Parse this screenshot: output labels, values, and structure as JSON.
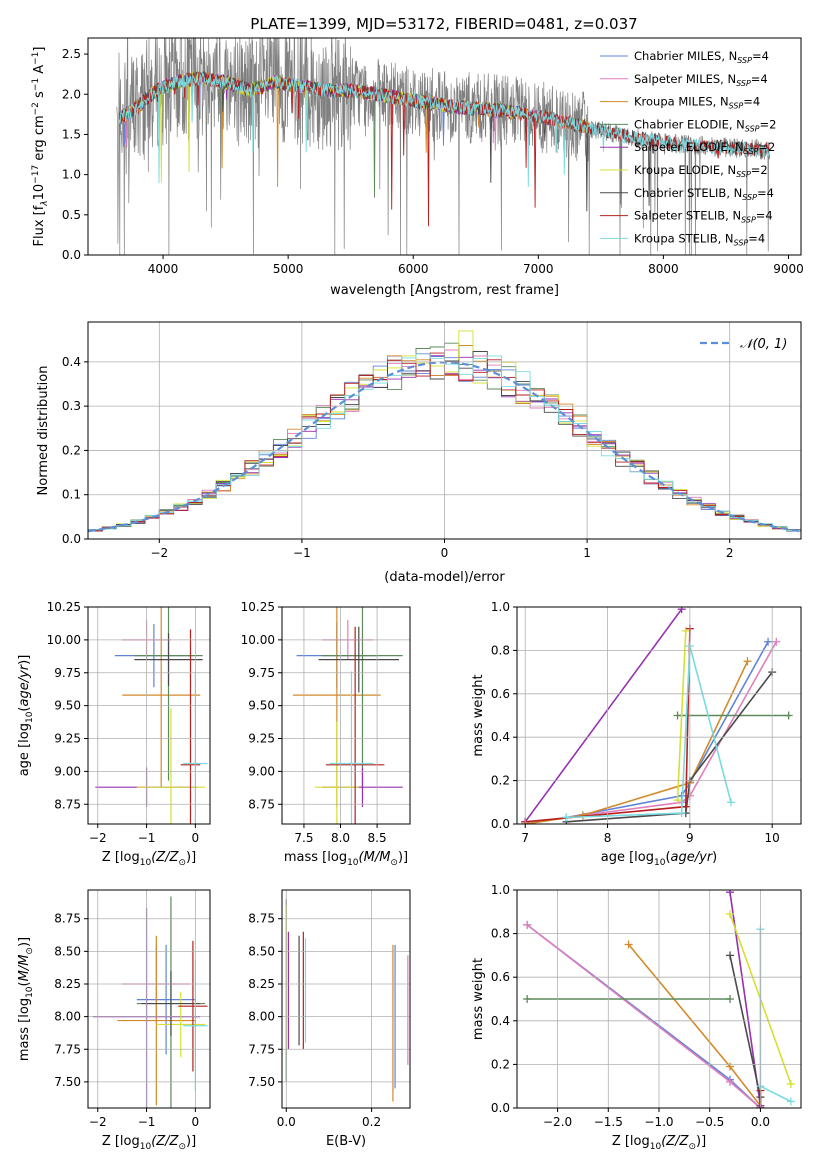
{
  "colors": {
    "Chabrier MILES": "#5f84d8",
    "Salpeter MILES": "#e07fbd",
    "Kroupa MILES": "#d28a2a",
    "Chabrier ELODIE": "#5c8a5a",
    "Salpeter ELODIE": "#9531b0",
    "Kroupa ELODIE": "#d6e030",
    "Chabrier STELIB": "#4a4a4a",
    "Salpeter STELIB": "#b81f1f",
    "Kroupa STELIB": "#79dbe0",
    "data": "#808080",
    "normal": "#5b8fd8",
    "orange": "#e07b2a",
    "purple": "#9531b0",
    "green": "#5c8a5a"
  },
  "chart_data": [
    {
      "type": "line",
      "title": "PLATE=1399, MJD=53172, FIBERID=0481, z=0.037",
      "xlabel": "wavelength [Angstrom, rest frame]",
      "ylabel": "Flux [f",
      "xlim": [
        3400,
        9100
      ],
      "ylim": [
        0,
        2.7
      ],
      "xticks": [
        "4000",
        "5000",
        "6000",
        "7000",
        "8000",
        "9000"
      ],
      "yticks": [
        "0.0",
        "0.5",
        "1.0",
        "1.5",
        "2.0",
        "2.5"
      ],
      "legend": "top-right",
      "legend_entries": [
        {
          "name": "Chabrier MILES, N",
          "sub": "SSP",
          "tail": "=4"
        },
        {
          "name": "Salpeter MILES, N",
          "sub": "SSP",
          "tail": "=4"
        },
        {
          "name": "Kroupa MILES, N",
          "sub": "SSP",
          "tail": "=4"
        },
        {
          "name": "Chabrier ELODIE, N",
          "sub": "SSP",
          "tail": "=2"
        },
        {
          "name": "Salpeter ELODIE, N",
          "sub": "SSP",
          "tail": "=2"
        },
        {
          "name": "Kroupa ELODIE, N",
          "sub": "SSP",
          "tail": "=2"
        },
        {
          "name": "Chabrier STELIB, N",
          "sub": "SSP",
          "tail": "=4"
        },
        {
          "name": "Salpeter STELIB, N",
          "sub": "SSP",
          "tail": "=4"
        },
        {
          "name": "Kroupa STELIB, N",
          "sub": "SSP",
          "tail": "=4"
        }
      ],
      "continuum": [
        [
          3650,
          1.7
        ],
        [
          3800,
          1.85
        ],
        [
          3950,
          2.05
        ],
        [
          4100,
          2.15
        ],
        [
          4300,
          2.2
        ],
        [
          4500,
          2.15
        ],
        [
          4700,
          2.05
        ],
        [
          4900,
          2.15
        ],
        [
          5100,
          2.1
        ],
        [
          5300,
          2.05
        ],
        [
          5500,
          2.05
        ],
        [
          5700,
          2.0
        ],
        [
          5900,
          1.95
        ],
        [
          6100,
          1.9
        ],
        [
          6300,
          1.85
        ],
        [
          6500,
          1.82
        ],
        [
          6700,
          1.8
        ],
        [
          6900,
          1.75
        ],
        [
          7100,
          1.7
        ],
        [
          7300,
          1.62
        ],
        [
          7500,
          1.55
        ],
        [
          7700,
          1.48
        ],
        [
          7900,
          1.42
        ],
        [
          8100,
          1.38
        ],
        [
          8300,
          1.36
        ],
        [
          8500,
          1.34
        ],
        [
          8700,
          1.32
        ],
        [
          8850,
          1.3
        ]
      ],
      "ssp_wavelength_limits": {
        "MILES": [
          3650,
          7400
        ],
        "ELODIE": [
          3650,
          6800
        ],
        "STELIB": [
          3650,
          8850
        ]
      }
    },
    {
      "type": "step",
      "xlabel": "(data-model)/error",
      "ylabel": "Normed distribution",
      "xlim": [
        -2.5,
        2.5
      ],
      "ylim": [
        0,
        0.49
      ],
      "xticks": [
        "−2",
        "−1",
        "0",
        "1",
        "2"
      ],
      "yticks": [
        "0.0",
        "0.1",
        "0.2",
        "0.3",
        "0.4"
      ],
      "legend": "top-right",
      "legend_entry": "𝒩(0, 1)",
      "bin_width": 0.1,
      "curve": "normal",
      "mean": 0,
      "sigma": 1
    },
    {
      "type": "errorbar",
      "xlabel_main": "Z [log",
      "xlabel_sub": "10",
      "xlabel_rest": "(Z/Z",
      "ylabel": "age  [log10(age/yr)]",
      "xlim": [
        -2.2,
        0.3
      ],
      "ylim": [
        8.6,
        10.25
      ],
      "xticks": [
        {
          "v": -2,
          "t": "−2"
        },
        {
          "v": -1,
          "t": "−1"
        },
        {
          "v": 0,
          "t": "0"
        }
      ],
      "yticks": [
        "8.75",
        "9.00",
        "9.25",
        "9.50",
        "9.75",
        "10.00",
        "10.25"
      ],
      "series": [
        {
          "name": "Chabrier MILES",
          "x": -0.85,
          "xerr": 0.8,
          "y": 9.88,
          "yerr": 0.24
        },
        {
          "name": "Salpeter MILES",
          "x": -1.0,
          "xerr": 0.5,
          "y": 10.0,
          "yerr": 0.15
        },
        {
          "name": "Kroupa MILES",
          "x": -0.7,
          "xerr": 0.8,
          "y": 9.58,
          "yerr": 0.7
        },
        {
          "name": "Chabrier ELODIE",
          "x": -0.55,
          "xerr": 0.7,
          "y": 9.88,
          "yerr": 0.95
        },
        {
          "name": "Salpeter ELODIE",
          "x": -1.0,
          "xerr": 1.05,
          "y": 8.88,
          "yerr": 0.15
        },
        {
          "name": "Kroupa ELODIE",
          "x": -0.5,
          "xerr": 0.7,
          "y": 8.88,
          "yerr": 0.6
        },
        {
          "name": "Chabrier STELIB",
          "x": -0.55,
          "xerr": 0.7,
          "y": 9.85,
          "yerr": 0.2
        },
        {
          "name": "Salpeter STELIB",
          "x": -0.1,
          "xerr": 0.2,
          "y": 9.05,
          "yerr": 1.03
        },
        {
          "name": "Kroupa STELIB",
          "x": 0.0,
          "xerr": 0.25,
          "y": 9.06,
          "yerr": 0.7
        }
      ]
    },
    {
      "type": "errorbar",
      "xlabel_main": "mass [log",
      "xlabel_sub": "10",
      "xlabel_rest": "(M/M",
      "xlim": [
        7.2,
        8.95
      ],
      "ylim": [
        8.6,
        10.25
      ],
      "xticks": [
        {
          "v": 7.5,
          "t": "7.5"
        },
        {
          "v": 8.0,
          "t": "8.0"
        },
        {
          "v": 8.5,
          "t": "8.5"
        }
      ],
      "yticks": [
        "8.75",
        "9.00",
        "9.25",
        "9.50",
        "9.75",
        "10.00",
        "10.25"
      ],
      "series": [
        {
          "name": "Chabrier MILES",
          "x": 7.95,
          "xerr": 0.55,
          "y": 9.88,
          "yerr": 0.25
        },
        {
          "name": "Salpeter MILES",
          "x": 8.1,
          "xerr": 0.35,
          "y": 10.0,
          "yerr": 0.15
        },
        {
          "name": "Kroupa MILES",
          "x": 7.95,
          "xerr": 0.6,
          "y": 9.58,
          "yerr": 0.85
        },
        {
          "name": "Chabrier ELODIE",
          "x": 8.3,
          "xerr": 0.55,
          "y": 9.88,
          "yerr": 1.0
        },
        {
          "name": "Salpeter ELODIE",
          "x": 8.3,
          "xerr": 0.55,
          "y": 8.88,
          "yerr": 0.15
        },
        {
          "name": "Kroupa ELODIE",
          "x": 7.95,
          "xerr": 0.3,
          "y": 8.88,
          "yerr": 0.5
        },
        {
          "name": "Chabrier STELIB",
          "x": 8.25,
          "xerr": 0.55,
          "y": 9.85,
          "yerr": 0.25
        },
        {
          "name": "Salpeter STELIB",
          "x": 8.2,
          "xerr": 0.4,
          "y": 9.05,
          "yerr": 1.05
        },
        {
          "name": "Kroupa STELIB",
          "x": 8.15,
          "xerr": 0.3,
          "y": 9.06,
          "yerr": 0.7
        }
      ]
    },
    {
      "type": "line",
      "xlabel_main": "age  [log",
      "xlabel_sub": "10",
      "xlabel_rest": "(age/yr)]",
      "ylabel": "mass weight",
      "xlim": [
        6.9,
        10.35
      ],
      "ylim": [
        0,
        1.0
      ],
      "xticks": [
        {
          "v": 7,
          "t": "7"
        },
        {
          "v": 8,
          "t": "8"
        },
        {
          "v": 9,
          "t": "9"
        },
        {
          "v": 10,
          "t": "10"
        }
      ],
      "yticks": [
        "0.0",
        "0.2",
        "0.4",
        "0.6",
        "0.8",
        "1.0"
      ],
      "series": [
        {
          "name": "Chabrier MILES",
          "x": [
            7.0,
            7.5,
            8.9,
            9.0,
            9.95
          ],
          "y": [
            0.0,
            0.03,
            0.13,
            0.19,
            0.84
          ]
        },
        {
          "name": "Salpeter MILES",
          "x": [
            7.0,
            7.5,
            8.9,
            9.0,
            10.05
          ],
          "y": [
            0.0,
            0.03,
            0.1,
            0.13,
            0.84
          ]
        },
        {
          "name": "Kroupa MILES",
          "x": [
            7.0,
            7.7,
            9.0,
            9.7
          ],
          "y": [
            0.0,
            0.04,
            0.19,
            0.75
          ]
        },
        {
          "name": "Chabrier ELODIE",
          "x": [
            8.85,
            10.2
          ],
          "y": [
            0.5,
            0.5
          ],
          "xerr_line": true
        },
        {
          "name": "Salpeter ELODIE",
          "x": [
            7.0,
            8.9
          ],
          "y": [
            0.01,
            0.99
          ]
        },
        {
          "name": "Kroupa ELODIE",
          "x": [
            8.85,
            8.95
          ],
          "y": [
            0.11,
            0.89
          ]
        },
        {
          "name": "Chabrier STELIB",
          "x": [
            7.5,
            8.95,
            9.0,
            10.0
          ],
          "y": [
            0.01,
            0.05,
            0.2,
            0.7
          ]
        },
        {
          "name": "Salpeter STELIB",
          "x": [
            7.0,
            8.95,
            9.0
          ],
          "y": [
            0.01,
            0.08,
            0.9
          ]
        },
        {
          "name": "Kroupa STELIB",
          "x": [
            7.5,
            8.9,
            9.0,
            9.5
          ],
          "y": [
            0.03,
            0.05,
            0.82,
            0.1
          ]
        }
      ]
    },
    {
      "type": "errorbar",
      "xlabel_main": "Z [log",
      "xlabel_sub": "10",
      "xlabel_rest": "(Z/Z",
      "ylabel": "mass [log10(M/M☉)]",
      "xlim": [
        -2.2,
        0.3
      ],
      "ylim": [
        7.3,
        8.97
      ],
      "xticks": [
        {
          "v": -2,
          "t": "−2"
        },
        {
          "v": -1,
          "t": "−1"
        },
        {
          "v": 0,
          "t": "0"
        }
      ],
      "yticks": [
        "7.50",
        "7.75",
        "8.00",
        "8.25",
        "8.50",
        "8.75"
      ],
      "series": [
        {
          "name": "Chabrier MILES",
          "x": -0.6,
          "xerr": 0.6,
          "y": 8.13,
          "yerr": 0.42
        },
        {
          "name": "Salpeter MILES",
          "x": -0.8,
          "xerr": 0.7,
          "y": 8.25,
          "yerr": 0.3
        },
        {
          "name": "Kroupa MILES",
          "x": -0.8,
          "xerr": 0.8,
          "y": 7.97,
          "yerr": 0.65
        },
        {
          "name": "Chabrier ELODIE",
          "x": -0.5,
          "xerr": 0.7,
          "y": 8.1,
          "yerr": 0.82
        },
        {
          "name": "Salpeter ELODIE",
          "x": -1.0,
          "xerr": 1.1,
          "y": 8.0,
          "yerr": 0.83
        },
        {
          "name": "Kroupa ELODIE",
          "x": -0.3,
          "xerr": 0.5,
          "y": 7.94,
          "yerr": 0.25
        },
        {
          "name": "Chabrier STELIB",
          "x": -0.5,
          "xerr": 0.6,
          "y": 8.1,
          "yerr": 0.25
        },
        {
          "name": "Salpeter STELIB",
          "x": -0.05,
          "xerr": 0.3,
          "y": 8.08,
          "yerr": 0.5
        },
        {
          "name": "Kroupa STELIB",
          "x": 0.0,
          "xerr": 0.25,
          "y": 7.93,
          "yerr": 0.5
        }
      ]
    },
    {
      "type": "errorbar",
      "xlabel": "E(B-V)",
      "xlim": [
        -0.01,
        0.29
      ],
      "ylim": [
        7.3,
        8.97
      ],
      "xticks": [
        {
          "v": 0.0,
          "t": "0.0"
        },
        {
          "v": 0.2,
          "t": "0.2"
        }
      ],
      "yticks": [
        "7.50",
        "7.75",
        "8.00",
        "8.25",
        "8.50",
        "8.75"
      ],
      "series": [
        {
          "name": "Chabrier MILES",
          "x": 0.255,
          "xerr": 0,
          "y": 8.0,
          "yerr": 0.55
        },
        {
          "name": "Salpeter MILES",
          "x": 0.285,
          "xerr": 0,
          "y": 8.05,
          "yerr": 0.42
        },
        {
          "name": "Kroupa MILES",
          "x": 0.25,
          "xerr": 0,
          "y": 7.95,
          "yerr": 0.6
        },
        {
          "name": "Chabrier ELODIE",
          "x": 0.0,
          "xerr": 0,
          "y": 8.2,
          "yerr": 0.7
        },
        {
          "name": "Salpeter ELODIE",
          "x": 0.005,
          "xerr": 0,
          "y": 8.2,
          "yerr": 0.45
        },
        {
          "name": "Kroupa ELODIE",
          "x": 0.0,
          "xerr": 0,
          "y": 8.3,
          "yerr": 0.55
        },
        {
          "name": "Chabrier STELIB",
          "x": 0.03,
          "xerr": 0,
          "y": 8.2,
          "yerr": 0.42
        },
        {
          "name": "Salpeter STELIB",
          "x": 0.04,
          "xerr": 0,
          "y": 8.2,
          "yerr": 0.45
        },
        {
          "name": "Kroupa STELIB",
          "x": 0.045,
          "xerr": 0,
          "y": 8.2,
          "yerr": 0.4
        }
      ]
    },
    {
      "type": "line",
      "xlabel_main": "Z [log",
      "xlabel_sub": "10",
      "xlabel_rest": "(Z/Z",
      "ylabel": "mass weight",
      "xlim": [
        -2.4,
        0.4
      ],
      "ylim": [
        0,
        1.0
      ],
      "xticks": [
        {
          "v": -2.0,
          "t": "−2.0"
        },
        {
          "v": -1.5,
          "t": "−1.5"
        },
        {
          "v": -1.0,
          "t": "−1.0"
        },
        {
          "v": -0.5,
          "t": "−0.5"
        },
        {
          "v": 0.0,
          "t": "0.0"
        }
      ],
      "yticks": [
        "0.0",
        "0.2",
        "0.4",
        "0.6",
        "0.8",
        "1.0"
      ],
      "series": [
        {
          "name": "Chabrier MILES",
          "x": [
            -2.3,
            -0.3,
            0.0
          ],
          "y": [
            0.84,
            0.13,
            0.0
          ]
        },
        {
          "name": "Salpeter MILES",
          "x": [
            -2.3,
            -0.3,
            0.0
          ],
          "y": [
            0.84,
            0.12,
            0.0
          ]
        },
        {
          "name": "Kroupa MILES",
          "x": [
            -1.3,
            -0.3,
            0.0
          ],
          "y": [
            0.75,
            0.19,
            0.01
          ]
        },
        {
          "name": "Chabrier ELODIE",
          "x": [
            -2.3,
            -0.3
          ],
          "y": [
            0.5,
            0.5
          ]
        },
        {
          "name": "Salpeter ELODIE",
          "x": [
            -0.3,
            0.0
          ],
          "y": [
            0.99,
            0.01
          ]
        },
        {
          "name": "Kroupa ELODIE",
          "x": [
            -0.3,
            0.3
          ],
          "y": [
            0.89,
            0.11
          ]
        },
        {
          "name": "Chabrier STELIB",
          "x": [
            -0.3,
            0.0,
            0.0
          ],
          "y": [
            0.7,
            0.05,
            0.0
          ]
        },
        {
          "name": "Salpeter STELIB",
          "x": [
            0.0,
            0.0
          ],
          "y": [
            0.0,
            0.08
          ]
        },
        {
          "name": "Kroupa STELIB",
          "x": [
            0.0,
            0.0,
            0.3
          ],
          "y": [
            0.82,
            0.1,
            0.03
          ]
        }
      ]
    }
  ]
}
